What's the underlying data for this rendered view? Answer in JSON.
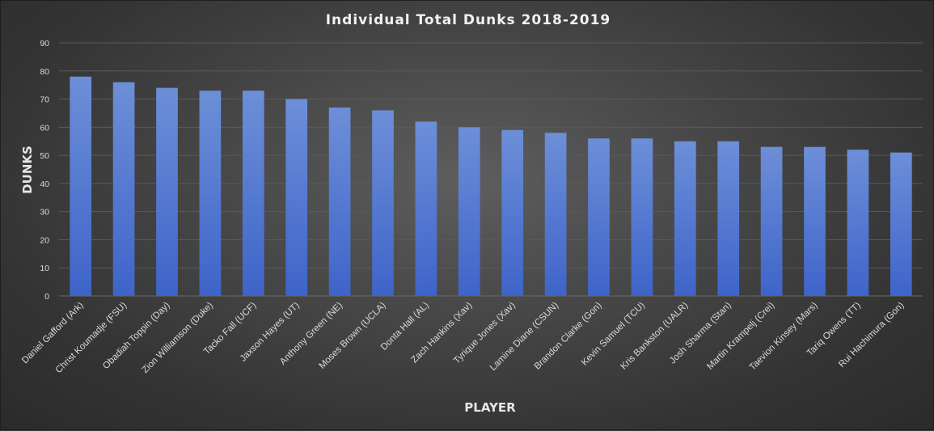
{
  "chart_data": {
    "type": "bar",
    "title": "Individual  Total  Dunks  2018-2019",
    "xlabel": "PLAYER",
    "ylabel": "DUNKS",
    "ylim": [
      0,
      90
    ],
    "yticks": [
      "0",
      "10",
      "20",
      "30",
      "40",
      "50",
      "60",
      "70",
      "80",
      "90"
    ],
    "grid": true,
    "legend": "none",
    "categories": [
      "Daniel Gafford (Ark)",
      "Christ Koumadje (FSU)",
      "Obadiah Toppin (Day)",
      "Zion Williamson (Duke)",
      "Tacko Fall (UCF)",
      "Jaxson Hayes (UT)",
      "Anthony Green (NE)",
      "Moses Brown (UCLA)",
      "Donta Hall (AL)",
      "Zach Hankins (Xav)",
      "Tyrique Jones (Xav)",
      "Lamine Diane (CSUN)",
      "Brandon Clarke (Gon)",
      "Kevin Samuel (TCU)",
      "Kris Bankston (UALR)",
      "Josh Sharma (Stan)",
      "Martin Krampelj (Crei)",
      "Taevion Kinsey (Mars)",
      "Tariq Owens (TT)",
      "Rui Hachimura (Gon)"
    ],
    "values": [
      78,
      76,
      74,
      73,
      73,
      70,
      67,
      66,
      62,
      60,
      59,
      58,
      56,
      56,
      55,
      55,
      53,
      53,
      52,
      51
    ],
    "colors": {
      "bar_top": "#6d8fd8",
      "bar_bottom": "#3e64c9"
    }
  }
}
